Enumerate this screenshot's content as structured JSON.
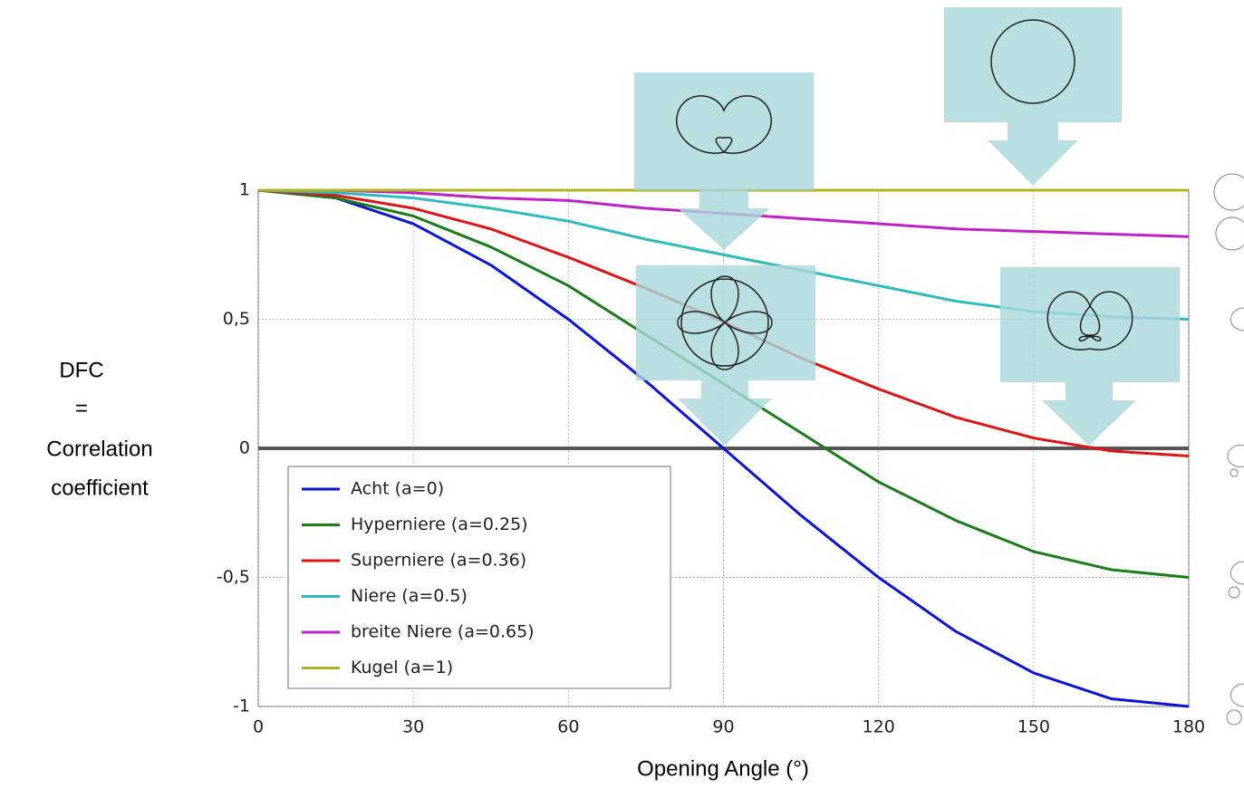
{
  "chart_data": {
    "type": "line",
    "ylabel_lines": [
      "DFC",
      "=",
      "Correlation",
      "coefficient"
    ],
    "xlabel": "Opening Angle (°)",
    "x": [
      0,
      15,
      30,
      45,
      60,
      75,
      90,
      105,
      120,
      135,
      150,
      165,
      180
    ],
    "series": [
      {
        "name": "Acht (a=0)",
        "color": "#0a14d8",
        "values": [
          1,
          0.97,
          0.87,
          0.71,
          0.5,
          0.26,
          0,
          -0.26,
          -0.5,
          -0.71,
          -0.87,
          -0.97,
          -1
        ]
      },
      {
        "name": "Hyperniere (a=0.25)",
        "color": "#1a7d1a",
        "values": [
          1,
          0.97,
          0.9,
          0.78,
          0.63,
          0.44,
          0.25,
          0.06,
          -0.13,
          -0.28,
          -0.4,
          -0.47,
          -0.5
        ]
      },
      {
        "name": "Superniere (a=0.36)",
        "color": "#e01414",
        "values": [
          1,
          0.98,
          0.93,
          0.85,
          0.74,
          0.62,
          0.49,
          0.35,
          0.23,
          0.12,
          0.04,
          -0.01,
          -0.03
        ]
      },
      {
        "name": "Niere (a=0.5)",
        "color": "#2cbcc0",
        "values": [
          1,
          0.99,
          0.97,
          0.93,
          0.88,
          0.81,
          0.75,
          0.69,
          0.63,
          0.57,
          0.53,
          0.51,
          0.5
        ]
      },
      {
        "name": "breite Niere (a=0.65)",
        "color": "#c020c8",
        "values": [
          1,
          1,
          0.99,
          0.97,
          0.96,
          0.93,
          0.91,
          0.89,
          0.87,
          0.85,
          0.84,
          0.83,
          0.82
        ]
      },
      {
        "name": "Kugel (a=1)",
        "color": "#b3b320",
        "values": [
          1,
          1,
          1,
          1,
          1,
          1,
          1,
          1,
          1,
          1,
          1,
          1,
          1
        ]
      }
    ],
    "xlim": [
      0,
      180
    ],
    "xticks": [
      0,
      30,
      60,
      90,
      120,
      150,
      180
    ],
    "ylim": [
      -1,
      1
    ],
    "yticks": [
      -1,
      {
        "value": -0.5,
        "label": "-0,5"
      },
      0,
      {
        "value": 0.5,
        "label": "0,5"
      },
      1
    ],
    "grid": true,
    "legend": "lower left"
  }
}
